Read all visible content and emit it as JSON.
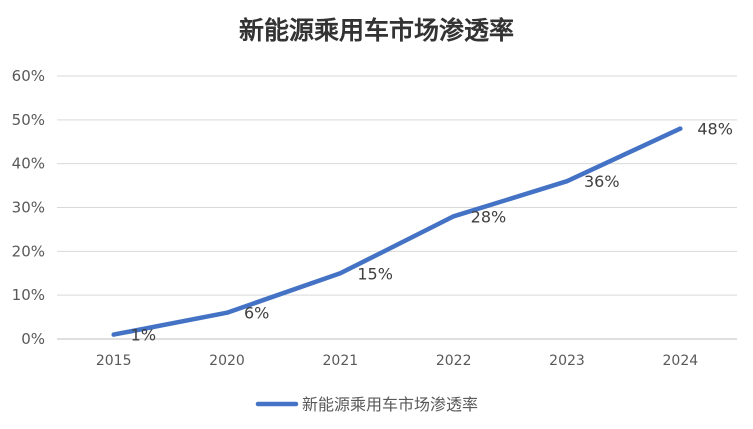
{
  "chart_data": {
    "type": "line",
    "title": "新能源乘用车市场渗透率",
    "categories": [
      "2015",
      "2020",
      "2021",
      "2022",
      "2023",
      "2024"
    ],
    "series": [
      {
        "name": "新能源乘用车市场渗透率",
        "values": [
          1,
          6,
          15,
          28,
          36,
          48
        ],
        "labels": [
          "1%",
          "6%",
          "15%",
          "28%",
          "36%",
          "48%"
        ]
      }
    ],
    "ylim": [
      0,
      60
    ],
    "y_ticks": [
      0,
      10,
      20,
      30,
      40,
      50,
      60
    ],
    "y_tick_labels": [
      "0%",
      "10%",
      "20%",
      "30%",
      "40%",
      "50%",
      "60%"
    ],
    "grid": true,
    "legend": "bottom",
    "colors": {
      "series": "#4472c4"
    }
  }
}
